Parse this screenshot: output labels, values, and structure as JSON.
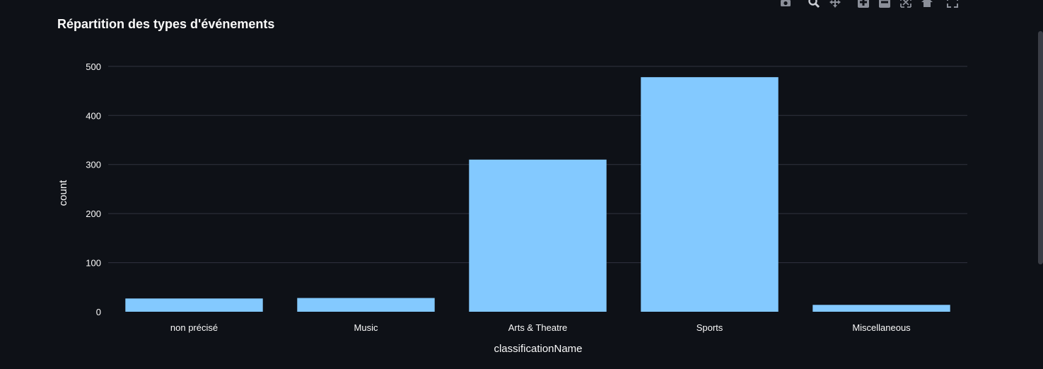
{
  "chart_data": {
    "type": "bar",
    "title": "Répartition des types d'événements",
    "xlabel": "classificationName",
    "ylabel": "count",
    "categories": [
      "non précisé",
      "Music",
      "Arts & Theatre",
      "Sports",
      "Miscellaneous"
    ],
    "values": [
      27,
      28,
      310,
      478,
      14
    ],
    "ylim": [
      0,
      520
    ],
    "yticks": [
      0,
      100,
      200,
      300,
      400,
      500
    ],
    "grid": true,
    "bar_color": "#83c9ff",
    "grid_color": "#31333f",
    "text_color": "#fafafa"
  },
  "modebar": {
    "icons": [
      "camera-icon",
      "zoom-icon",
      "pan-icon",
      "zoom-in-icon",
      "zoom-out-icon",
      "autoscale-icon",
      "reset-axes-icon",
      "fullscreen-icon"
    ]
  }
}
